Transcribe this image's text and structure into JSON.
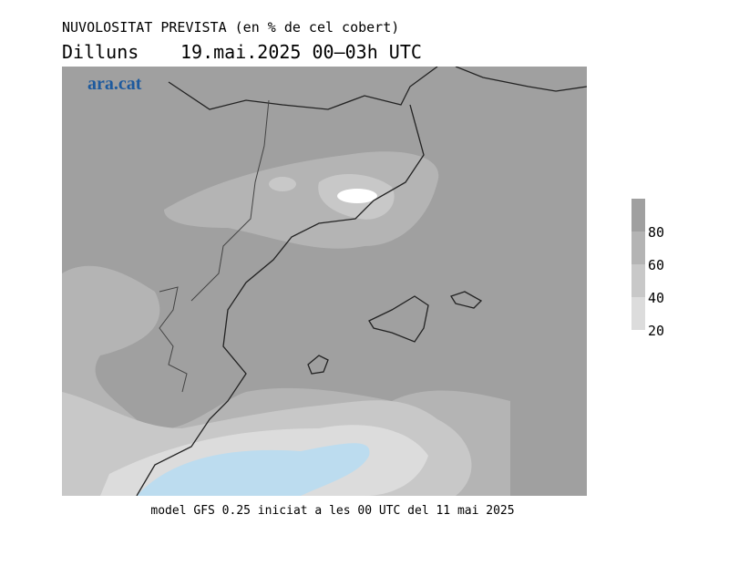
{
  "header": {
    "title": "NUVOLOSITAT PREVISTA (en % de cel cobert)",
    "day": "Dilluns",
    "time": "19.mai.2025 00–03h UTC"
  },
  "map": {
    "logo": "ara.cat",
    "colorbar": {
      "lim": [
        20,
        100
      ],
      "ticks": [
        20,
        40,
        60,
        80
      ],
      "colors": [
        "#dcdcdc",
        "#c8c8c8",
        "#b4b4b4",
        "#a0a0a0"
      ]
    }
  },
  "footer": "model GFS 0.25 iniciat a les 00 UTC del 11 mai 2025"
}
